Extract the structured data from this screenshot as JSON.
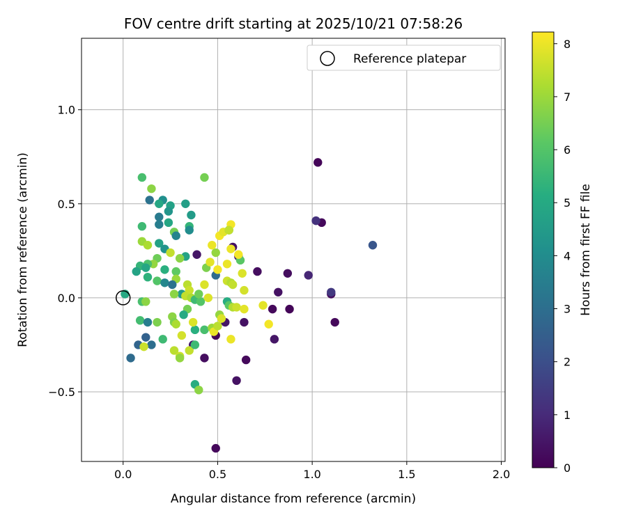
{
  "chart_data": {
    "type": "scatter",
    "title": "FOV centre drift starting at 2025/10/21 07:58:26",
    "xlabel": "Angular distance from reference (arcmin)",
    "ylabel": "Rotation from reference (arcmin)",
    "xlim": [
      -0.22,
      2.02
    ],
    "ylim": [
      -0.87,
      1.38
    ],
    "xticks": [
      0.0,
      0.5,
      1.0,
      1.5,
      2.0
    ],
    "xtick_labels": [
      "0.0",
      "0.5",
      "1.0",
      "1.5",
      "2.0"
    ],
    "yticks": [
      -0.5,
      0.0,
      0.5,
      1.0
    ],
    "ytick_labels": [
      "−0.5",
      "0.0",
      "0.5",
      "1.0"
    ],
    "grid": true,
    "legend": {
      "position": "top-right",
      "entries": [
        "Reference platepar"
      ]
    },
    "reference_point": {
      "x": 0.0,
      "y": 0.0
    },
    "colorbar": {
      "label": "Hours from first FF file",
      "min": 0,
      "max": 8.22,
      "ticks": [
        0,
        1,
        2,
        3,
        4,
        5,
        6,
        7,
        8
      ],
      "tick_labels": [
        "0",
        "1",
        "2",
        "3",
        "4",
        "5",
        "6",
        "7",
        "8"
      ],
      "colormap": "viridis"
    },
    "points": [
      {
        "x": 1.03,
        "y": 0.72,
        "h": 0.1
      },
      {
        "x": 1.05,
        "y": 0.4,
        "h": 0.2
      },
      {
        "x": 1.02,
        "y": 0.41,
        "h": 1.2
      },
      {
        "x": 1.32,
        "y": 0.28,
        "h": 2.2
      },
      {
        "x": 1.1,
        "y": 0.02,
        "h": 0.3
      },
      {
        "x": 1.1,
        "y": 0.03,
        "h": 1.4
      },
      {
        "x": 1.12,
        "y": -0.13,
        "h": 0.2
      },
      {
        "x": 0.98,
        "y": 0.12,
        "h": 0.9
      },
      {
        "x": 0.87,
        "y": 0.13,
        "h": 0.3
      },
      {
        "x": 0.82,
        "y": 0.03,
        "h": 0.4
      },
      {
        "x": 0.79,
        "y": -0.06,
        "h": 0.2
      },
      {
        "x": 0.88,
        "y": -0.06,
        "h": 0.1
      },
      {
        "x": 0.8,
        "y": -0.22,
        "h": 0.5
      },
      {
        "x": 0.71,
        "y": 0.14,
        "h": 0.3
      },
      {
        "x": 0.64,
        "y": -0.13,
        "h": 0.4
      },
      {
        "x": 0.65,
        "y": -0.33,
        "h": 0.2
      },
      {
        "x": 0.6,
        "y": -0.44,
        "h": 0.4
      },
      {
        "x": 0.49,
        "y": -0.8,
        "h": 0.2
      },
      {
        "x": 0.43,
        "y": -0.32,
        "h": 0.3
      },
      {
        "x": 0.49,
        "y": -0.2,
        "h": 0.1
      },
      {
        "x": 0.54,
        "y": -0.13,
        "h": 0.5
      },
      {
        "x": 0.58,
        "y": 0.27,
        "h": 0.4
      },
      {
        "x": 0.61,
        "y": 0.22,
        "h": 0.8
      },
      {
        "x": 0.39,
        "y": 0.23,
        "h": 0.5
      },
      {
        "x": 0.37,
        "y": -0.25,
        "h": 0.6
      },
      {
        "x": 0.49,
        "y": 0.12,
        "h": 2.9
      },
      {
        "x": 0.1,
        "y": 0.64,
        "h": 5.8
      },
      {
        "x": 0.43,
        "y": 0.64,
        "h": 6.5
      },
      {
        "x": 0.15,
        "y": 0.58,
        "h": 6.8
      },
      {
        "x": 0.14,
        "y": 0.52,
        "h": 3.1
      },
      {
        "x": 0.21,
        "y": 0.52,
        "h": 4.1
      },
      {
        "x": 0.19,
        "y": 0.5,
        "h": 4.9
      },
      {
        "x": 0.33,
        "y": 0.5,
        "h": 4.6
      },
      {
        "x": 0.25,
        "y": 0.49,
        "h": 4.7
      },
      {
        "x": 0.24,
        "y": 0.46,
        "h": 4.3
      },
      {
        "x": 0.36,
        "y": 0.44,
        "h": 4.5
      },
      {
        "x": 0.19,
        "y": 0.43,
        "h": 3.4
      },
      {
        "x": 0.24,
        "y": 0.4,
        "h": 4.9
      },
      {
        "x": 0.19,
        "y": 0.39,
        "h": 3.5
      },
      {
        "x": 0.1,
        "y": 0.38,
        "h": 5.6
      },
      {
        "x": 0.35,
        "y": 0.38,
        "h": 5.4
      },
      {
        "x": 0.35,
        "y": 0.36,
        "h": 4.0
      },
      {
        "x": 0.27,
        "y": 0.35,
        "h": 6.5
      },
      {
        "x": 0.28,
        "y": 0.33,
        "h": 3.7
      },
      {
        "x": 0.1,
        "y": 0.3,
        "h": 7.0
      },
      {
        "x": 0.13,
        "y": 0.28,
        "h": 7.2
      },
      {
        "x": 0.19,
        "y": 0.29,
        "h": 4.7
      },
      {
        "x": 0.22,
        "y": 0.26,
        "h": 4.2
      },
      {
        "x": 0.25,
        "y": 0.24,
        "h": 7.5
      },
      {
        "x": 0.33,
        "y": 0.22,
        "h": 4.8
      },
      {
        "x": 0.18,
        "y": 0.21,
        "h": 6.4
      },
      {
        "x": 0.3,
        "y": 0.21,
        "h": 6.8
      },
      {
        "x": 0.16,
        "y": 0.18,
        "h": 6.9
      },
      {
        "x": 0.13,
        "y": 0.18,
        "h": 5.9
      },
      {
        "x": 0.09,
        "y": 0.17,
        "h": 5.4
      },
      {
        "x": 0.12,
        "y": 0.16,
        "h": 4.9
      },
      {
        "x": 0.22,
        "y": 0.15,
        "h": 5.2
      },
      {
        "x": 0.28,
        "y": 0.14,
        "h": 6.2
      },
      {
        "x": 0.07,
        "y": 0.14,
        "h": 4.8
      },
      {
        "x": 0.13,
        "y": 0.11,
        "h": 5.3
      },
      {
        "x": 0.18,
        "y": 0.09,
        "h": 6.0
      },
      {
        "x": 0.28,
        "y": 0.1,
        "h": 7.0
      },
      {
        "x": 0.22,
        "y": 0.08,
        "h": 3.8
      },
      {
        "x": 0.26,
        "y": 0.07,
        "h": 3.1
      },
      {
        "x": 0.34,
        "y": 0.07,
        "h": 7.4
      },
      {
        "x": 0.35,
        "y": 0.04,
        "h": 7.6
      },
      {
        "x": 0.31,
        "y": 0.02,
        "h": 4.5
      },
      {
        "x": 0.27,
        "y": 0.02,
        "h": 6.8
      },
      {
        "x": 0.33,
        "y": 0.01,
        "h": 7.5
      },
      {
        "x": 0.36,
        "y": 0.0,
        "h": 7.2
      },
      {
        "x": 0.38,
        "y": -0.01,
        "h": 5.6
      },
      {
        "x": 0.41,
        "y": -0.02,
        "h": 6.0
      },
      {
        "x": 0.4,
        "y": 0.02,
        "h": 6.4
      },
      {
        "x": 0.43,
        "y": 0.07,
        "h": 7.8
      },
      {
        "x": 0.45,
        "y": 0.0,
        "h": 7.8
      },
      {
        "x": 0.34,
        "y": -0.06,
        "h": 6.5
      },
      {
        "x": 0.32,
        "y": -0.09,
        "h": 5.0
      },
      {
        "x": 0.26,
        "y": -0.1,
        "h": 6.8
      },
      {
        "x": 0.27,
        "y": -0.13,
        "h": 6.6
      },
      {
        "x": 0.28,
        "y": -0.14,
        "h": 7.2
      },
      {
        "x": 0.18,
        "y": -0.13,
        "h": 6.6
      },
      {
        "x": 0.09,
        "y": -0.12,
        "h": 5.7
      },
      {
        "x": 0.13,
        "y": -0.13,
        "h": 3.5
      },
      {
        "x": 0.1,
        "y": -0.02,
        "h": 5.8
      },
      {
        "x": 0.12,
        "y": -0.02,
        "h": 6.8
      },
      {
        "x": 0.01,
        "y": 0.02,
        "h": 5.0
      },
      {
        "x": 0.04,
        "y": -0.32,
        "h": 2.9
      },
      {
        "x": 0.08,
        "y": -0.25,
        "h": 2.7
      },
      {
        "x": 0.12,
        "y": -0.21,
        "h": 2.6
      },
      {
        "x": 0.15,
        "y": -0.25,
        "h": 3.0
      },
      {
        "x": 0.11,
        "y": -0.26,
        "h": 7.6
      },
      {
        "x": 0.21,
        "y": -0.22,
        "h": 5.6
      },
      {
        "x": 0.31,
        "y": -0.2,
        "h": 7.7
      },
      {
        "x": 0.27,
        "y": -0.28,
        "h": 7.4
      },
      {
        "x": 0.3,
        "y": -0.31,
        "h": 7.6
      },
      {
        "x": 0.3,
        "y": -0.32,
        "h": 6.9
      },
      {
        "x": 0.35,
        "y": -0.28,
        "h": 7.5
      },
      {
        "x": 0.38,
        "y": -0.25,
        "h": 5.6
      },
      {
        "x": 0.38,
        "y": -0.17,
        "h": 5.2
      },
      {
        "x": 0.37,
        "y": -0.13,
        "h": 7.8
      },
      {
        "x": 0.43,
        "y": -0.17,
        "h": 5.8
      },
      {
        "x": 0.38,
        "y": -0.46,
        "h": 5.1
      },
      {
        "x": 0.4,
        "y": -0.49,
        "h": 6.8
      },
      {
        "x": 0.47,
        "y": -0.16,
        "h": 7.0
      },
      {
        "x": 0.48,
        "y": -0.18,
        "h": 8.0
      },
      {
        "x": 0.5,
        "y": -0.15,
        "h": 7.4
      },
      {
        "x": 0.51,
        "y": -0.09,
        "h": 6.9
      },
      {
        "x": 0.52,
        "y": -0.11,
        "h": 7.8
      },
      {
        "x": 0.55,
        "y": -0.02,
        "h": 5.1
      },
      {
        "x": 0.56,
        "y": -0.04,
        "h": 6.1
      },
      {
        "x": 0.58,
        "y": -0.05,
        "h": 7.3
      },
      {
        "x": 0.6,
        "y": -0.05,
        "h": 7.6
      },
      {
        "x": 0.64,
        "y": -0.06,
        "h": 7.9
      },
      {
        "x": 0.57,
        "y": -0.22,
        "h": 8.0
      },
      {
        "x": 0.74,
        "y": -0.04,
        "h": 7.9
      },
      {
        "x": 0.77,
        "y": -0.14,
        "h": 8.1
      },
      {
        "x": 0.44,
        "y": 0.16,
        "h": 6.6
      },
      {
        "x": 0.46,
        "y": 0.19,
        "h": 7.9
      },
      {
        "x": 0.5,
        "y": 0.15,
        "h": 8.1
      },
      {
        "x": 0.55,
        "y": 0.18,
        "h": 8.0
      },
      {
        "x": 0.55,
        "y": 0.09,
        "h": 7.6
      },
      {
        "x": 0.57,
        "y": 0.08,
        "h": 7.3
      },
      {
        "x": 0.63,
        "y": 0.13,
        "h": 7.8
      },
      {
        "x": 0.64,
        "y": 0.04,
        "h": 7.7
      },
      {
        "x": 0.62,
        "y": 0.2,
        "h": 6.1
      },
      {
        "x": 0.61,
        "y": 0.23,
        "h": 8.1
      },
      {
        "x": 0.57,
        "y": 0.26,
        "h": 8.0
      },
      {
        "x": 0.49,
        "y": 0.24,
        "h": 6.9
      },
      {
        "x": 0.47,
        "y": 0.28,
        "h": 8.0
      },
      {
        "x": 0.51,
        "y": 0.33,
        "h": 8.1
      },
      {
        "x": 0.53,
        "y": 0.35,
        "h": 7.9
      },
      {
        "x": 0.56,
        "y": 0.36,
        "h": 5.7
      },
      {
        "x": 0.57,
        "y": 0.39,
        "h": 8.1
      },
      {
        "x": 0.56,
        "y": 0.36,
        "h": 7.5
      },
      {
        "x": 0.58,
        "y": 0.07,
        "h": 7.5
      }
    ]
  }
}
